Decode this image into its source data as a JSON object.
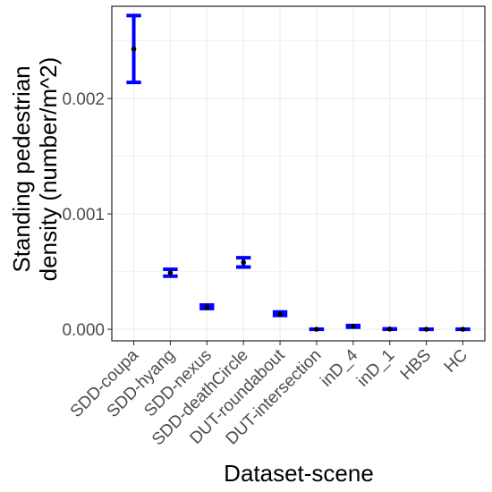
{
  "chart_data": {
    "type": "errorbar",
    "title": "",
    "xlabel": "Dataset-scene",
    "ylabel_lines": [
      "Standing pedestrian",
      "density (number/m^2)"
    ],
    "ylim": [
      -0.0001,
      0.0028
    ],
    "yticks": [
      0.0,
      0.001,
      0.002
    ],
    "ytick_labels": [
      "0.000",
      "0.001",
      "0.002"
    ],
    "grid": true,
    "legend": "none",
    "categories": [
      "SDD-coupa",
      "SDD-hyang",
      "SDD-nexus",
      "SDD-deathCircle",
      "DUT-roundabout",
      "DUT-intersection",
      "inD_4",
      "inD_1",
      "HBS",
      "HC"
    ],
    "mean": [
      0.00243,
      0.00049,
      0.00019,
      0.00058,
      0.00013,
      3e-07,
      2.5e-05,
      2e-06,
      3e-07,
      3e-07
    ],
    "lower": [
      0.00214,
      0.00046,
      0.00018,
      0.00054,
      0.00012,
      1e-07,
      1.8e-05,
      1e-06,
      1e-07,
      1e-07
    ],
    "upper": [
      0.00272,
      0.00052,
      0.00021,
      0.00062,
      0.00015,
      6e-07,
      3.3e-05,
      4e-06,
      6e-07,
      6e-07
    ],
    "colors": {
      "errorbar": "#0000ff",
      "point": "#000000",
      "grid": "#ebebeb",
      "panel_border": "#333333"
    }
  }
}
